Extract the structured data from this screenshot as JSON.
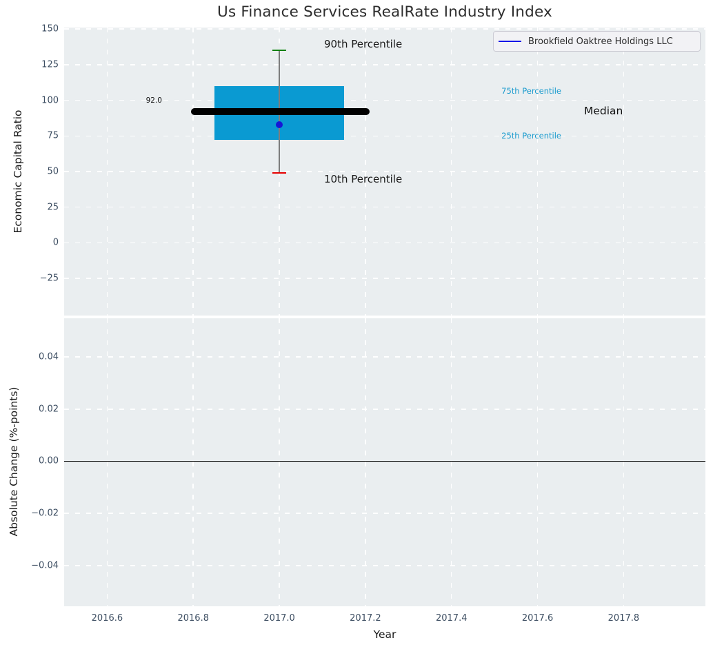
{
  "title": "Us Finance Services RealRate Industry Index",
  "legend": {
    "label": "Brookfield Oaktree Holdings LLC",
    "line_color": "#1212e8"
  },
  "colors": {
    "plot_background": "#eaeef0",
    "grid": "#ffffff",
    "tick_text": "#3c4d61",
    "title_text": "#2d2d2d",
    "axis_label_text": "#1a1a1a",
    "box_fill": "#0a9ad2",
    "median_line": "#000000",
    "company_dot": "#1616d6",
    "whisker_line": "#7d7d7d",
    "cap_90th": "#008000",
    "cap_10th": "#e60000",
    "percentile_label": "#1a9bce",
    "legend_background": "#f2f2f5",
    "legend_border": "#ccccd4"
  },
  "chart_data": [
    {
      "type": "boxplot",
      "title": "Us Finance Services RealRate Industry Index",
      "xlabel": "Year",
      "ylabel": "Economic Capital Ratio",
      "xlim": [
        2016.5,
        2017.99
      ],
      "ylim": [
        -51,
        151
      ],
      "grid": "dashed-white",
      "legend_position": "upper right",
      "series": [
        {
          "name": "Brookfield Oaktree Holdings LLC",
          "x": [
            2017.0
          ],
          "values": [
            83
          ]
        }
      ],
      "xticks": [
        2016.6,
        2016.8,
        2017.0,
        2017.2,
        2017.4,
        2017.6,
        2017.8
      ],
      "xtick_labels": [
        "2016.6",
        "2016.8",
        "2017.0",
        "2017.2",
        "2017.4",
        "2017.6",
        "2017.8"
      ],
      "yticks": [
        150,
        125,
        100,
        75,
        50,
        25,
        0,
        -25
      ],
      "ytick_labels": [
        "150",
        "125",
        "100",
        "75",
        "50",
        "25",
        "0",
        "−25"
      ],
      "box": {
        "x_center": 2017.0,
        "box_x": [
          2016.85,
          2017.15
        ],
        "median_x": [
          2016.795,
          2017.21
        ],
        "p10": 49,
        "p25": 72,
        "median": 92,
        "p75": 110,
        "p90": 135,
        "company_value": 83,
        "median_label": "92.0"
      },
      "annotations": [
        {
          "text": "90th Percentile",
          "x": 2017.104,
          "y": 139.5,
          "size": 15,
          "color": "#1a1a1a"
        },
        {
          "text": "10th Percentile",
          "x": 2017.104,
          "y": 44.5,
          "size": 15,
          "color": "#1a1a1a"
        },
        {
          "text": "75th Percentile",
          "x": 2017.516,
          "y": 106.5,
          "size": 11.5,
          "color": "#1a9bce"
        },
        {
          "text": "Median",
          "x": 2017.708,
          "y": 92.3,
          "size": 15.5,
          "color": "#111111"
        },
        {
          "text": "25th Percentile",
          "x": 2017.516,
          "y": 75.3,
          "size": 11.5,
          "color": "#1a9bce"
        },
        {
          "text": "92.0",
          "x": 2016.69,
          "y": 100,
          "size": 10.5,
          "color": "#111111"
        }
      ]
    },
    {
      "type": "line",
      "xlabel": "Year",
      "ylabel": "Absolute Change (%-points)",
      "xlim": [
        2016.5,
        2017.99
      ],
      "ylim": [
        -0.0556,
        0.0548
      ],
      "grid": "dashed-white",
      "zero_line": 0.0,
      "series": [],
      "xticks": [
        2016.6,
        2016.8,
        2017.0,
        2017.2,
        2017.4,
        2017.6,
        2017.8
      ],
      "xtick_labels": [
        "2016.6",
        "2016.8",
        "2017.0",
        "2017.2",
        "2017.4",
        "2017.6",
        "2017.8"
      ],
      "yticks": [
        0.04,
        0.02,
        0.0,
        -0.02,
        -0.04
      ],
      "ytick_labels": [
        "0.04",
        "0.02",
        "0.00",
        "−0.02",
        "−0.04"
      ]
    }
  ]
}
